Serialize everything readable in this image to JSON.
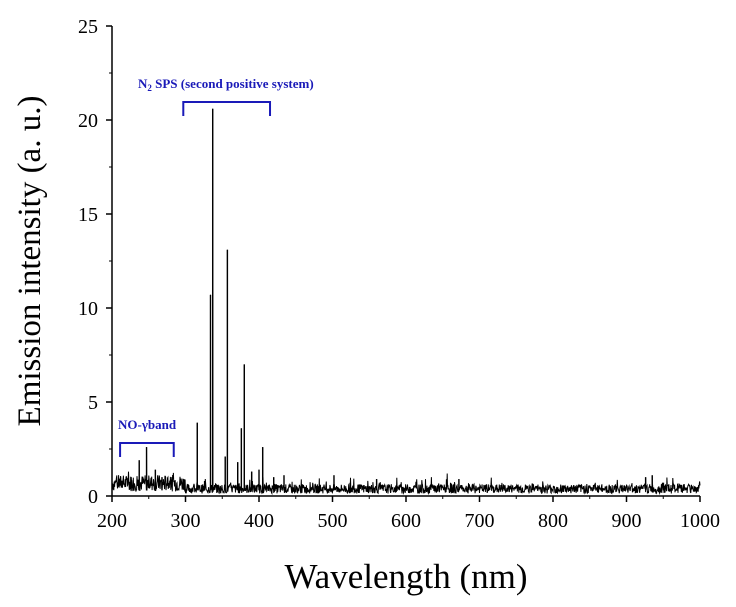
{
  "chart_data": {
    "type": "line",
    "title": "",
    "xlabel": "Wavelength (nm)",
    "ylabel": "Emission intensity (a. u.)",
    "xlim": [
      200,
      1000
    ],
    "ylim": [
      0,
      25
    ],
    "x_ticks": [
      200,
      300,
      400,
      500,
      600,
      700,
      800,
      900,
      1000
    ],
    "x_tick_labels": [
      "200",
      "300",
      "400",
      "500",
      "600",
      "700",
      "800",
      "900",
      "1000"
    ],
    "y_ticks": [
      0,
      5,
      10,
      15,
      20,
      25
    ],
    "y_tick_labels": [
      "0",
      "5",
      "10",
      "15",
      "20",
      "25"
    ],
    "grid": false,
    "line_color": "#000000",
    "annotation_color": "#1a1ab8",
    "series": [
      {
        "peaks": [
          {
            "x": 226,
            "y": 1.0
          },
          {
            "x": 237,
            "y": 1.9
          },
          {
            "x": 247,
            "y": 2.6
          },
          {
            "x": 259,
            "y": 1.4
          },
          {
            "x": 268,
            "y": 1.0
          },
          {
            "x": 316,
            "y": 3.9
          },
          {
            "x": 326,
            "y": 0.8
          },
          {
            "x": 337,
            "y": 20.6
          },
          {
            "x": 334,
            "y": 10.7
          },
          {
            "x": 354,
            "y": 2.1
          },
          {
            "x": 357,
            "y": 13.1
          },
          {
            "x": 371,
            "y": 1.8
          },
          {
            "x": 376,
            "y": 3.6
          },
          {
            "x": 380,
            "y": 7.0
          },
          {
            "x": 390,
            "y": 1.3
          },
          {
            "x": 400,
            "y": 1.4
          },
          {
            "x": 405,
            "y": 2.6
          },
          {
            "x": 420,
            "y": 1.0
          },
          {
            "x": 434,
            "y": 1.1
          },
          {
            "x": 502,
            "y": 1.1
          },
          {
            "x": 560,
            "y": 0.9
          },
          {
            "x": 672,
            "y": 0.9
          },
          {
            "x": 926,
            "y": 1.0
          },
          {
            "x": 935,
            "y": 1.1
          }
        ],
        "baseline": 0.45
      }
    ],
    "annotations": [
      {
        "label": "NO-γband",
        "x_start": 211,
        "x_end": 284
      },
      {
        "label_main": "N",
        "label_sub": "2",
        "label_rest": " SPS (second positive system)",
        "x_start": 297,
        "x_end": 415
      }
    ]
  }
}
